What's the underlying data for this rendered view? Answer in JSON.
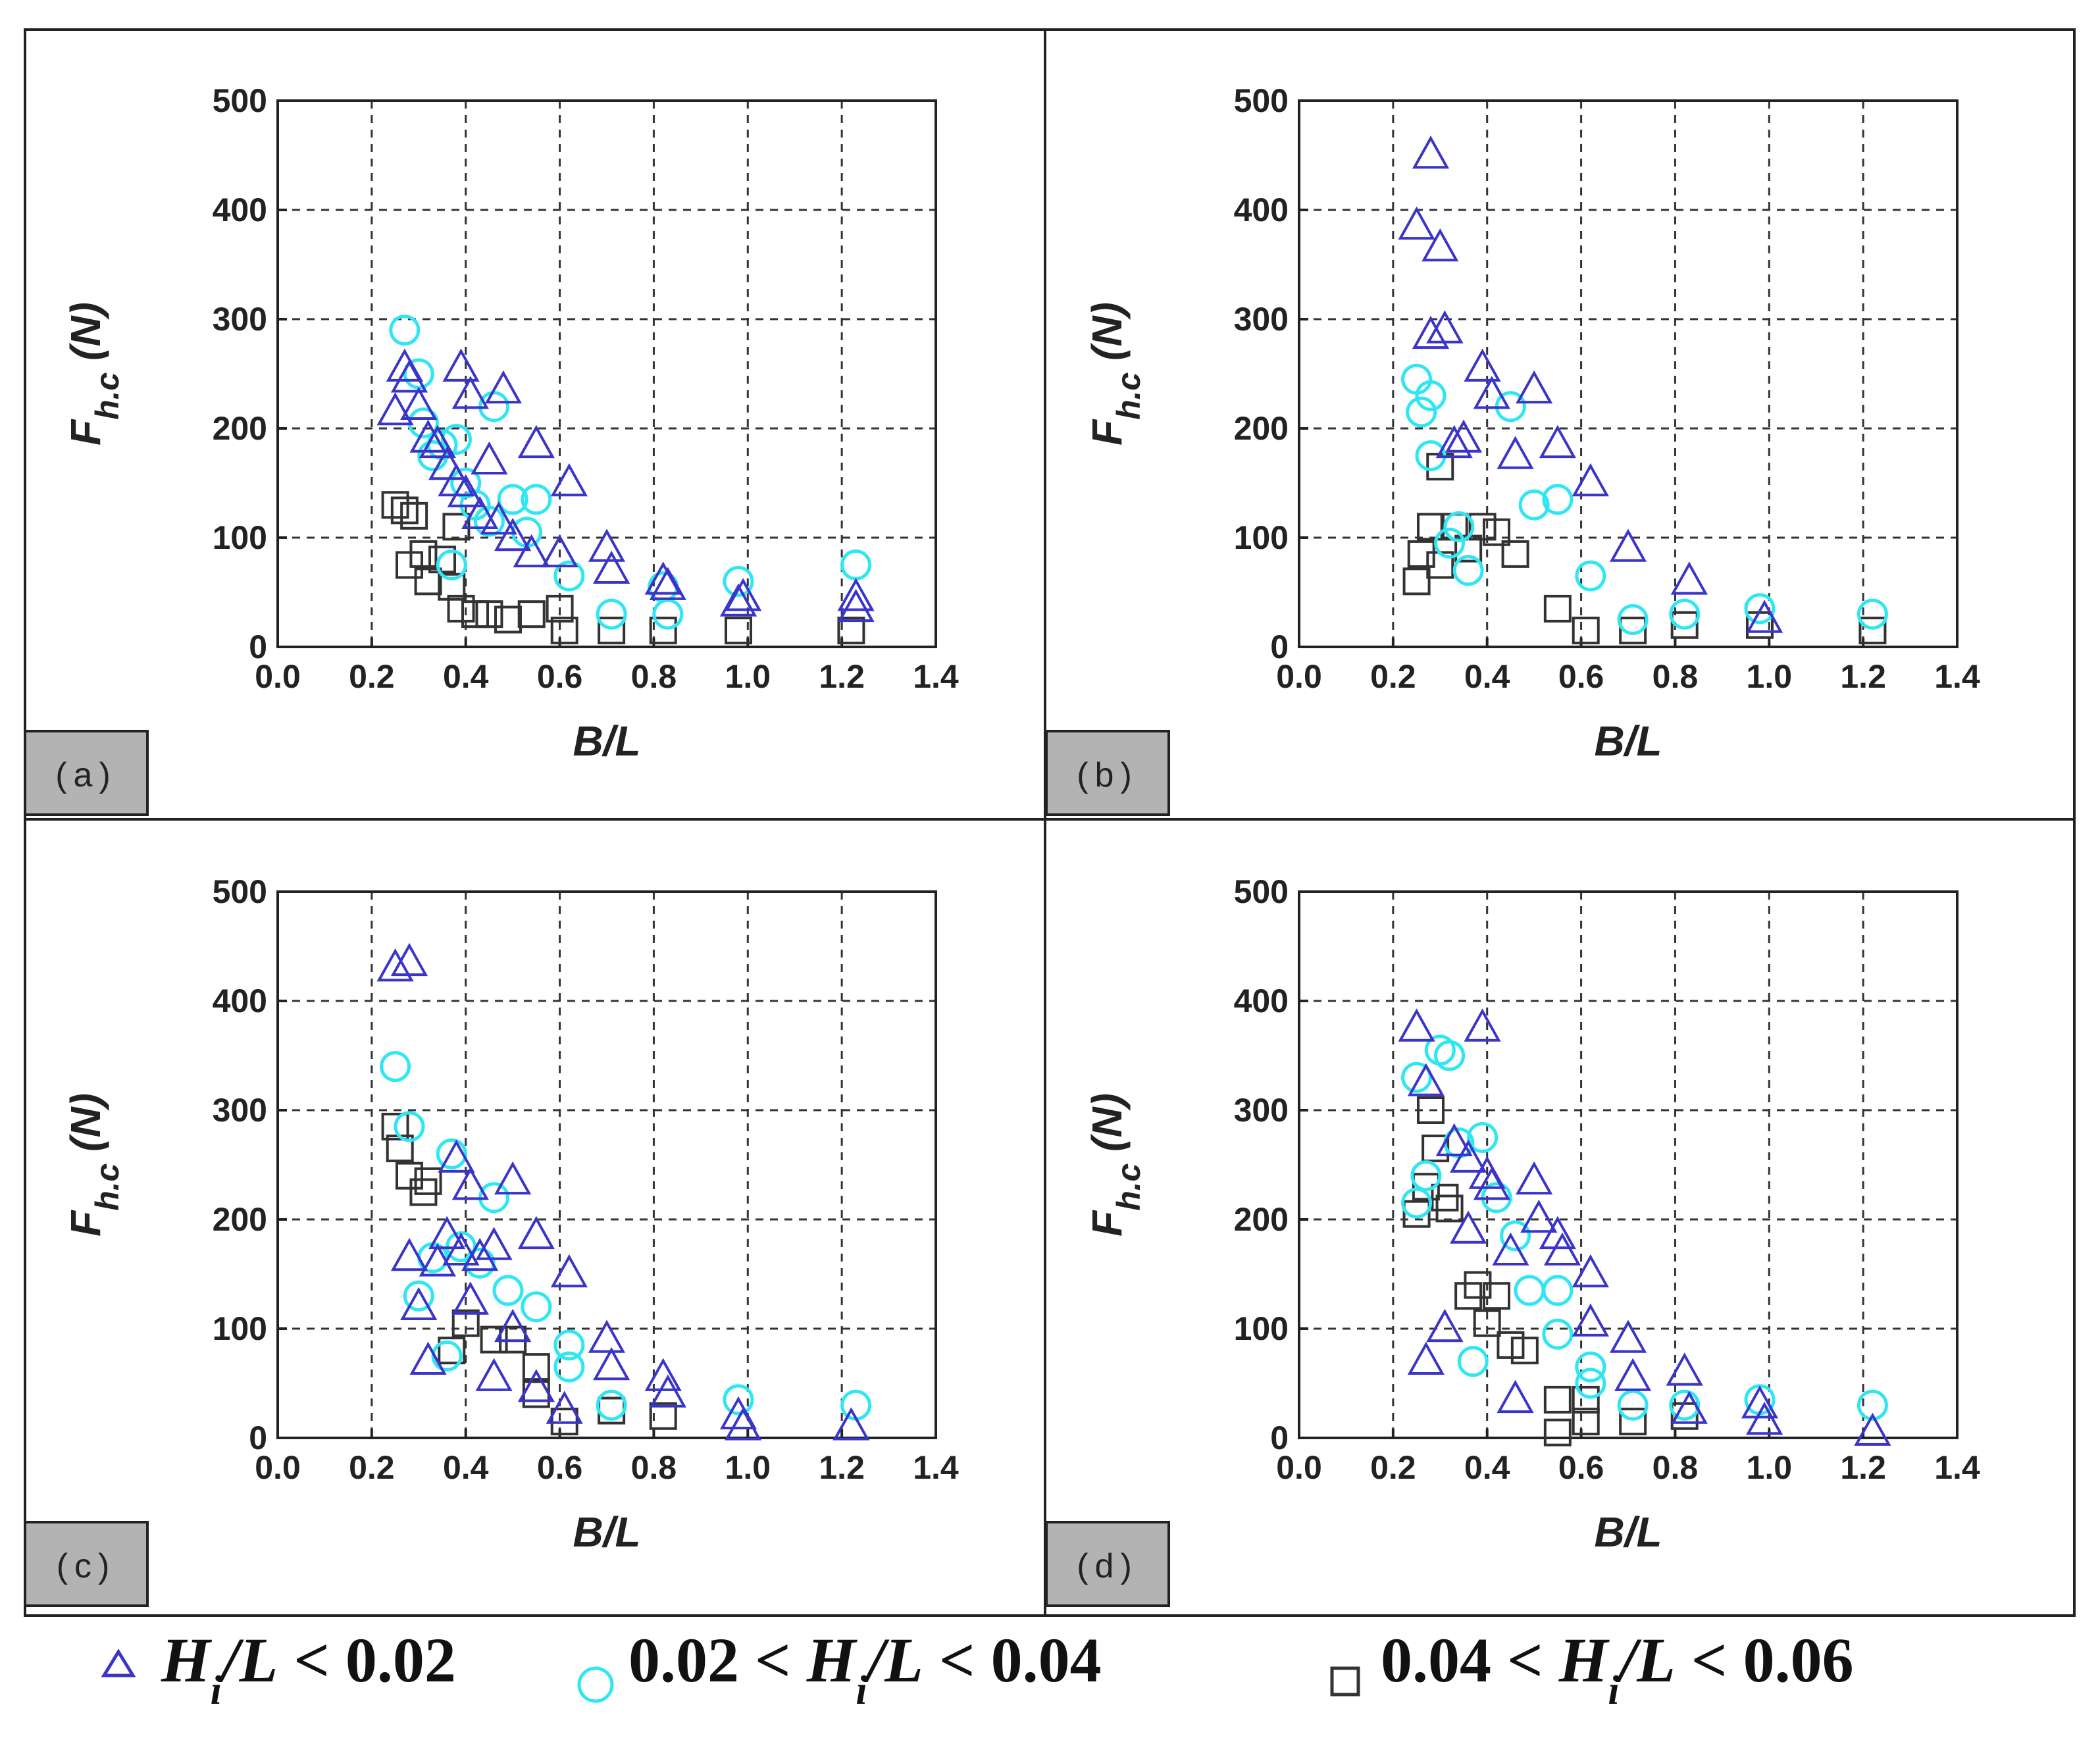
{
  "colors": {
    "triangle": "#3a34c9",
    "circle": "#2fe6f2",
    "square": "#333333",
    "grid": "#333333",
    "label_box": "#b3b3b3"
  },
  "legend": {
    "items": [
      {
        "series": "tri",
        "marker": "triangle",
        "text": "H_i/L < 0.02"
      },
      {
        "series": "cir",
        "marker": "circle",
        "text": "0.02 < H_i/L < 0.04"
      },
      {
        "series": "sq",
        "marker": "square",
        "text": "0.04 < H_i/L < 0.06"
      }
    ]
  },
  "chart_data": [
    {
      "panel_label": "(a)",
      "type": "scatter",
      "xlabel": "B/L",
      "ylabel": "F_h.c (N)",
      "xlim": [
        0,
        1.4
      ],
      "ylim": [
        0,
        500
      ],
      "xticks": [
        "0.0",
        "0.2",
        "0.4",
        "0.6",
        "0.8",
        "1.0",
        "1.2",
        "1.4"
      ],
      "yticks": [
        "0",
        "100",
        "200",
        "300",
        "400",
        "500"
      ],
      "series": [
        {
          "name": "H_i/L < 0.02",
          "id": "tri",
          "points": [
            [
              0.25,
              215
            ],
            [
              0.27,
              255
            ],
            [
              0.28,
              245
            ],
            [
              0.3,
              220
            ],
            [
              0.32,
              190
            ],
            [
              0.34,
              185
            ],
            [
              0.36,
              165
            ],
            [
              0.38,
              150
            ],
            [
              0.39,
              255
            ],
            [
              0.4,
              140
            ],
            [
              0.41,
              230
            ],
            [
              0.43,
              120
            ],
            [
              0.45,
              170
            ],
            [
              0.47,
              115
            ],
            [
              0.48,
              235
            ],
            [
              0.5,
              100
            ],
            [
              0.54,
              85
            ],
            [
              0.55,
              185
            ],
            [
              0.6,
              85
            ],
            [
              0.62,
              150
            ],
            [
              0.7,
              90
            ],
            [
              0.71,
              70
            ],
            [
              0.82,
              60
            ],
            [
              0.83,
              55
            ],
            [
              0.98,
              40
            ],
            [
              0.99,
              45
            ],
            [
              1.23,
              35
            ],
            [
              1.23,
              45
            ]
          ]
        },
        {
          "name": "0.02 < H_i/L < 0.04",
          "id": "cir",
          "points": [
            [
              0.27,
              290
            ],
            [
              0.3,
              250
            ],
            [
              0.31,
              205
            ],
            [
              0.33,
              175
            ],
            [
              0.35,
              185
            ],
            [
              0.37,
              75
            ],
            [
              0.38,
              190
            ],
            [
              0.4,
              150
            ],
            [
              0.42,
              130
            ],
            [
              0.45,
              115
            ],
            [
              0.46,
              220
            ],
            [
              0.5,
              135
            ],
            [
              0.53,
              105
            ],
            [
              0.55,
              135
            ],
            [
              0.62,
              65
            ],
            [
              0.71,
              30
            ],
            [
              0.82,
              55
            ],
            [
              0.83,
              30
            ],
            [
              0.98,
              60
            ],
            [
              1.23,
              75
            ]
          ]
        },
        {
          "name": "0.04 < H_i/L < 0.06",
          "id": "sq",
          "points": [
            [
              0.25,
              130
            ],
            [
              0.27,
              125
            ],
            [
              0.29,
              120
            ],
            [
              0.28,
              75
            ],
            [
              0.31,
              85
            ],
            [
              0.32,
              60
            ],
            [
              0.35,
              80
            ],
            [
              0.37,
              55
            ],
            [
              0.38,
              110
            ],
            [
              0.39,
              35
            ],
            [
              0.42,
              30
            ],
            [
              0.45,
              30
            ],
            [
              0.49,
              25
            ],
            [
              0.54,
              30
            ],
            [
              0.6,
              35
            ],
            [
              0.61,
              15
            ],
            [
              0.71,
              15
            ],
            [
              0.82,
              15
            ],
            [
              0.98,
              15
            ],
            [
              1.22,
              15
            ]
          ]
        }
      ]
    },
    {
      "panel_label": "(b)",
      "type": "scatter",
      "xlabel": "B/L",
      "ylabel": "F_h.c (N)",
      "xlim": [
        0,
        1.4
      ],
      "ylim": [
        0,
        500
      ],
      "xticks": [
        "0.0",
        "0.2",
        "0.4",
        "0.6",
        "0.8",
        "1.0",
        "1.2",
        "1.4"
      ],
      "yticks": [
        "0",
        "100",
        "200",
        "300",
        "400",
        "500"
      ],
      "series": [
        {
          "name": "H_i/L < 0.02",
          "id": "tri",
          "points": [
            [
              0.28,
              450
            ],
            [
              0.25,
              385
            ],
            [
              0.3,
              365
            ],
            [
              0.28,
              285
            ],
            [
              0.31,
              290
            ],
            [
              0.33,
              185
            ],
            [
              0.35,
              190
            ],
            [
              0.39,
              255
            ],
            [
              0.41,
              230
            ],
            [
              0.46,
              175
            ],
            [
              0.5,
              235
            ],
            [
              0.55,
              185
            ],
            [
              0.62,
              150
            ],
            [
              0.7,
              90
            ],
            [
              0.83,
              60
            ],
            [
              0.99,
              25
            ]
          ]
        },
        {
          "name": "0.02 < H_i/L < 0.04",
          "id": "cir",
          "points": [
            [
              0.25,
              245
            ],
            [
              0.26,
              215
            ],
            [
              0.28,
              230
            ],
            [
              0.28,
              175
            ],
            [
              0.32,
              95
            ],
            [
              0.34,
              110
            ],
            [
              0.36,
              70
            ],
            [
              0.45,
              220
            ],
            [
              0.5,
              130
            ],
            [
              0.55,
              135
            ],
            [
              0.62,
              65
            ],
            [
              0.71,
              25
            ],
            [
              0.82,
              30
            ],
            [
              0.98,
              35
            ],
            [
              1.22,
              30
            ]
          ]
        },
        {
          "name": "0.04 < H_i/L < 0.06",
          "id": "sq",
          "points": [
            [
              0.25,
              60
            ],
            [
              0.26,
              85
            ],
            [
              0.28,
              110
            ],
            [
              0.3,
              75
            ],
            [
              0.3,
              165
            ],
            [
              0.33,
              110
            ],
            [
              0.36,
              90
            ],
            [
              0.39,
              110
            ],
            [
              0.42,
              105
            ],
            [
              0.46,
              85
            ],
            [
              0.55,
              35
            ],
            [
              0.61,
              15
            ],
            [
              0.71,
              15
            ],
            [
              0.82,
              20
            ],
            [
              0.98,
              20
            ],
            [
              1.22,
              15
            ]
          ]
        }
      ]
    },
    {
      "panel_label": "(c)",
      "type": "scatter",
      "xlabel": "B/L",
      "ylabel": "F_h.c (N)",
      "xlim": [
        0,
        1.4
      ],
      "ylim": [
        0,
        500
      ],
      "xticks": [
        "0.0",
        "0.2",
        "0.4",
        "0.6",
        "0.8",
        "1.0",
        "1.2",
        "1.4"
      ],
      "yticks": [
        "0",
        "100",
        "200",
        "300",
        "400",
        "500"
      ],
      "series": [
        {
          "name": "H_i/L < 0.02",
          "id": "tri",
          "points": [
            [
              0.25,
              430
            ],
            [
              0.28,
              435
            ],
            [
              0.28,
              165
            ],
            [
              0.3,
              120
            ],
            [
              0.32,
              70
            ],
            [
              0.34,
              160
            ],
            [
              0.36,
              185
            ],
            [
              0.38,
              255
            ],
            [
              0.39,
              170
            ],
            [
              0.41,
              230
            ],
            [
              0.41,
              125
            ],
            [
              0.43,
              165
            ],
            [
              0.46,
              175
            ],
            [
              0.46,
              55
            ],
            [
              0.5,
              235
            ],
            [
              0.5,
              100
            ],
            [
              0.55,
              185
            ],
            [
              0.55,
              45
            ],
            [
              0.61,
              25
            ],
            [
              0.62,
              150
            ],
            [
              0.7,
              90
            ],
            [
              0.71,
              65
            ],
            [
              0.82,
              55
            ],
            [
              0.83,
              40
            ],
            [
              0.98,
              20
            ],
            [
              0.99,
              10
            ],
            [
              1.22,
              10
            ]
          ]
        },
        {
          "name": "0.02 < H_i/L < 0.04",
          "id": "cir",
          "points": [
            [
              0.25,
              340
            ],
            [
              0.28,
              285
            ],
            [
              0.3,
              130
            ],
            [
              0.33,
              165
            ],
            [
              0.36,
              75
            ],
            [
              0.37,
              260
            ],
            [
              0.39,
              175
            ],
            [
              0.43,
              160
            ],
            [
              0.46,
              220
            ],
            [
              0.49,
              135
            ],
            [
              0.55,
              120
            ],
            [
              0.62,
              85
            ],
            [
              0.62,
              65
            ],
            [
              0.71,
              30
            ],
            [
              0.98,
              35
            ],
            [
              1.23,
              30
            ]
          ]
        },
        {
          "name": "0.04 < H_i/L < 0.06",
          "id": "sq",
          "points": [
            [
              0.25,
              285
            ],
            [
              0.26,
              265
            ],
            [
              0.28,
              240
            ],
            [
              0.31,
              225
            ],
            [
              0.32,
              235
            ],
            [
              0.37,
              80
            ],
            [
              0.4,
              105
            ],
            [
              0.46,
              90
            ],
            [
              0.5,
              90
            ],
            [
              0.55,
              65
            ],
            [
              0.55,
              40
            ],
            [
              0.61,
              15
            ],
            [
              0.71,
              25
            ],
            [
              0.82,
              20
            ]
          ]
        }
      ]
    },
    {
      "panel_label": "(d)",
      "type": "scatter",
      "xlabel": "B/L",
      "ylabel": "F_h.c (N)",
      "xlim": [
        0,
        1.4
      ],
      "ylim": [
        0,
        500
      ],
      "xticks": [
        "0.0",
        "0.2",
        "0.4",
        "0.6",
        "0.8",
        "1.0",
        "1.2",
        "1.4"
      ],
      "yticks": [
        "0",
        "100",
        "200",
        "300",
        "400",
        "500"
      ],
      "series": [
        {
          "name": "H_i/L < 0.02",
          "id": "tri",
          "points": [
            [
              0.25,
              375
            ],
            [
              0.27,
              325
            ],
            [
              0.27,
              70
            ],
            [
              0.31,
              100
            ],
            [
              0.33,
              270
            ],
            [
              0.36,
              255
            ],
            [
              0.36,
              190
            ],
            [
              0.39,
              375
            ],
            [
              0.4,
              240
            ],
            [
              0.41,
              230
            ],
            [
              0.45,
              170
            ],
            [
              0.46,
              35
            ],
            [
              0.5,
              235
            ],
            [
              0.51,
              200
            ],
            [
              0.55,
              185
            ],
            [
              0.56,
              170
            ],
            [
              0.62,
              150
            ],
            [
              0.62,
              105
            ],
            [
              0.7,
              90
            ],
            [
              0.71,
              55
            ],
            [
              0.82,
              60
            ],
            [
              0.83,
              25
            ],
            [
              0.98,
              30
            ],
            [
              0.99,
              15
            ],
            [
              1.22,
              5
            ]
          ]
        },
        {
          "name": "0.02 < H_i/L < 0.04",
          "id": "cir",
          "points": [
            [
              0.25,
              215
            ],
            [
              0.25,
              330
            ],
            [
              0.27,
              240
            ],
            [
              0.3,
              355
            ],
            [
              0.32,
              350
            ],
            [
              0.34,
              270
            ],
            [
              0.37,
              70
            ],
            [
              0.39,
              275
            ],
            [
              0.42,
              220
            ],
            [
              0.46,
              185
            ],
            [
              0.49,
              135
            ],
            [
              0.55,
              135
            ],
            [
              0.55,
              95
            ],
            [
              0.62,
              65
            ],
            [
              0.62,
              50
            ],
            [
              0.71,
              30
            ],
            [
              0.82,
              30
            ],
            [
              0.98,
              35
            ],
            [
              1.22,
              30
            ]
          ]
        },
        {
          "name": "0.04 < H_i/L < 0.06",
          "id": "sq",
          "points": [
            [
              0.25,
              205
            ],
            [
              0.27,
              230
            ],
            [
              0.28,
              300
            ],
            [
              0.29,
              265
            ],
            [
              0.31,
              220
            ],
            [
              0.32,
              210
            ],
            [
              0.36,
              130
            ],
            [
              0.38,
              140
            ],
            [
              0.4,
              105
            ],
            [
              0.42,
              130
            ],
            [
              0.45,
              85
            ],
            [
              0.48,
              80
            ],
            [
              0.55,
              35
            ],
            [
              0.55,
              5
            ],
            [
              0.61,
              35
            ],
            [
              0.61,
              15
            ],
            [
              0.71,
              15
            ],
            [
              0.82,
              20
            ]
          ]
        }
      ]
    }
  ]
}
